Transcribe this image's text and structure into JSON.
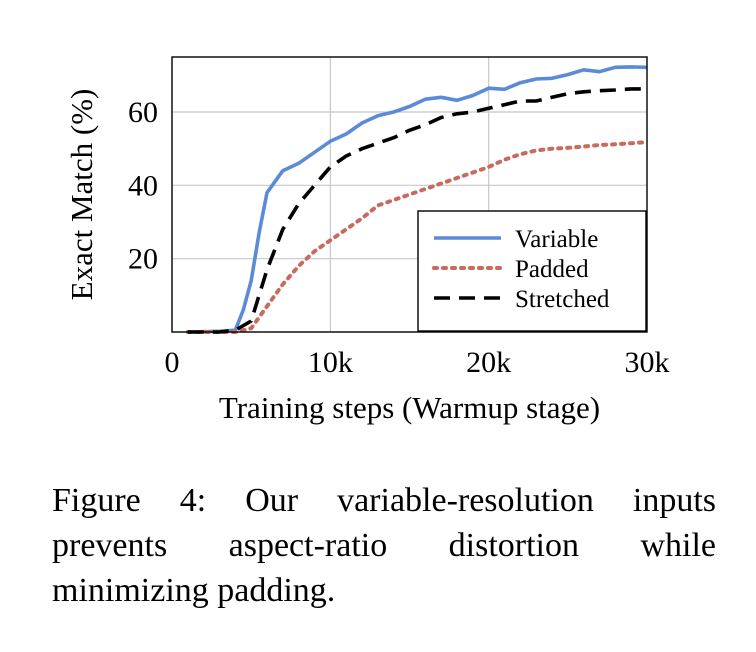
{
  "chart_data": {
    "type": "line",
    "xlabel": "Training steps (Warmup stage)",
    "ylabel": "Exact Match (%)",
    "xlim": [
      0,
      30000
    ],
    "ylim": [
      0,
      75
    ],
    "xticks": [
      0,
      10000,
      20000,
      30000
    ],
    "xtick_labels": [
      "0",
      "10k",
      "20k",
      "30k"
    ],
    "yticks": [
      20,
      40,
      60
    ],
    "ytick_labels": [
      "20",
      "40",
      "60"
    ],
    "grid": true,
    "legend_position": "bottom-right",
    "series": [
      {
        "name": "Variable",
        "color": "#5b8bd8",
        "style": "solid",
        "x": [
          1000,
          3000,
          4000,
          4500,
          5000,
          5500,
          6000,
          7000,
          8000,
          9000,
          10000,
          11000,
          12000,
          13000,
          14000,
          15000,
          16000,
          17000,
          18000,
          19000,
          20000,
          21000,
          22000,
          23000,
          24000,
          25000,
          26000,
          27000,
          28000,
          29000,
          30000
        ],
        "y": [
          0,
          0.2,
          0.5,
          6,
          14,
          27,
          38,
          44,
          46,
          49,
          52,
          54,
          57,
          59,
          60,
          61.5,
          63.5,
          64,
          63.2,
          64.5,
          66.5,
          66.2,
          68,
          69,
          69.2,
          70.2,
          71.5,
          71,
          72.2,
          72.3,
          72.2
        ]
      },
      {
        "name": "Padded",
        "color": "#c86b5e",
        "style": "dotted",
        "x": [
          1000,
          3000,
          4000,
          5000,
          6000,
          7000,
          8000,
          9000,
          10000,
          11000,
          12000,
          13000,
          14000,
          15000,
          16000,
          17000,
          18000,
          19000,
          20000,
          21000,
          22000,
          23000,
          24000,
          25000,
          26000,
          27000,
          28000,
          29000,
          30000
        ],
        "y": [
          0,
          0,
          0,
          1,
          7,
          13,
          18,
          22,
          25,
          28,
          31,
          34.5,
          36,
          37.5,
          39,
          40.5,
          42,
          43.5,
          45,
          47,
          48.5,
          49.5,
          50,
          50.2,
          50.6,
          51,
          51.2,
          51.5,
          51.8
        ]
      },
      {
        "name": "Stretched",
        "color": "#000000",
        "style": "dashed",
        "x": [
          1000,
          3000,
          4000,
          5000,
          5500,
          6000,
          7000,
          8000,
          9000,
          10000,
          11000,
          12000,
          13000,
          14000,
          15000,
          16000,
          17000,
          18000,
          19000,
          20000,
          21000,
          22000,
          23000,
          24000,
          25000,
          26000,
          27000,
          28000,
          29000,
          30000
        ],
        "y": [
          0,
          0,
          0.5,
          3,
          10,
          17,
          28,
          35,
          40,
          45,
          48,
          50,
          51.5,
          53,
          55,
          56.5,
          58.5,
          59.5,
          60,
          61,
          62,
          63,
          63,
          64,
          65,
          65.5,
          65.8,
          66,
          66.3,
          66.3
        ]
      }
    ]
  },
  "caption": "Figure 4: Our variable-resolution inputs prevents aspect-ratio distortion while minimizing padding."
}
